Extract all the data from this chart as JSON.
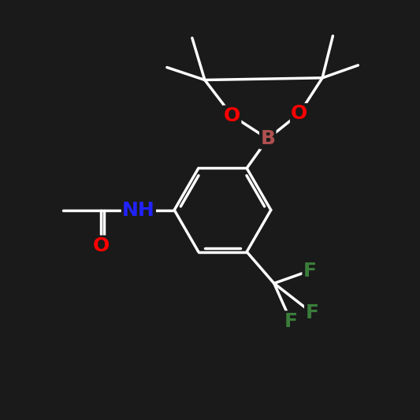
{
  "bg_color": "#1a1a1a",
  "bond_color": "white",
  "lw": 2.5,
  "colors": {
    "B": "#b05050",
    "N": "#2222ff",
    "O": "#ff0000",
    "F": "#3a7d3a",
    "C": "white",
    "H": "white"
  },
  "font_size": 18,
  "font_size_small": 14
}
